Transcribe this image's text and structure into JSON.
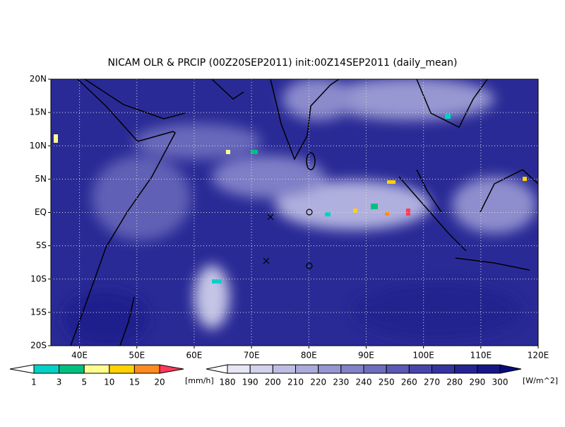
{
  "title": "NICAM OLR & PRCIP (00Z20SEP2011) init:00Z14SEP2011 (daily_mean)",
  "map": {
    "lat_labels": [
      "20N",
      "15N",
      "10N",
      "5N",
      "EQ",
      "5S",
      "10S",
      "15S",
      "20S"
    ],
    "lon_labels": [
      "40E",
      "50E",
      "60E",
      "70E",
      "80E",
      "90E",
      "100E",
      "110E",
      "120E"
    ]
  },
  "precip_colorbar": {
    "labels": [
      "1",
      "3",
      "5",
      "10",
      "15",
      "20"
    ],
    "unit": "[mm/h]",
    "colors": [
      "#ffffff",
      "#00d2c8",
      "#00c080",
      "#ffff90",
      "#ffd200",
      "#ff8a20",
      "#ff3a5a"
    ]
  },
  "olr_colorbar": {
    "labels": [
      "180",
      "190",
      "200",
      "210",
      "220",
      "230",
      "240",
      "250",
      "260",
      "270",
      "280",
      "290",
      "300"
    ],
    "unit": "[W/m^2]",
    "colors": [
      "#ffffff",
      "#e6e6f4",
      "#d2d2ec",
      "#bebee4",
      "#aaaadc",
      "#9696d2",
      "#8282c8",
      "#6e6ebe",
      "#5a5ab4",
      "#4646aa",
      "#3434a0",
      "#242496",
      "#16168a",
      "#0a0a80"
    ]
  }
}
